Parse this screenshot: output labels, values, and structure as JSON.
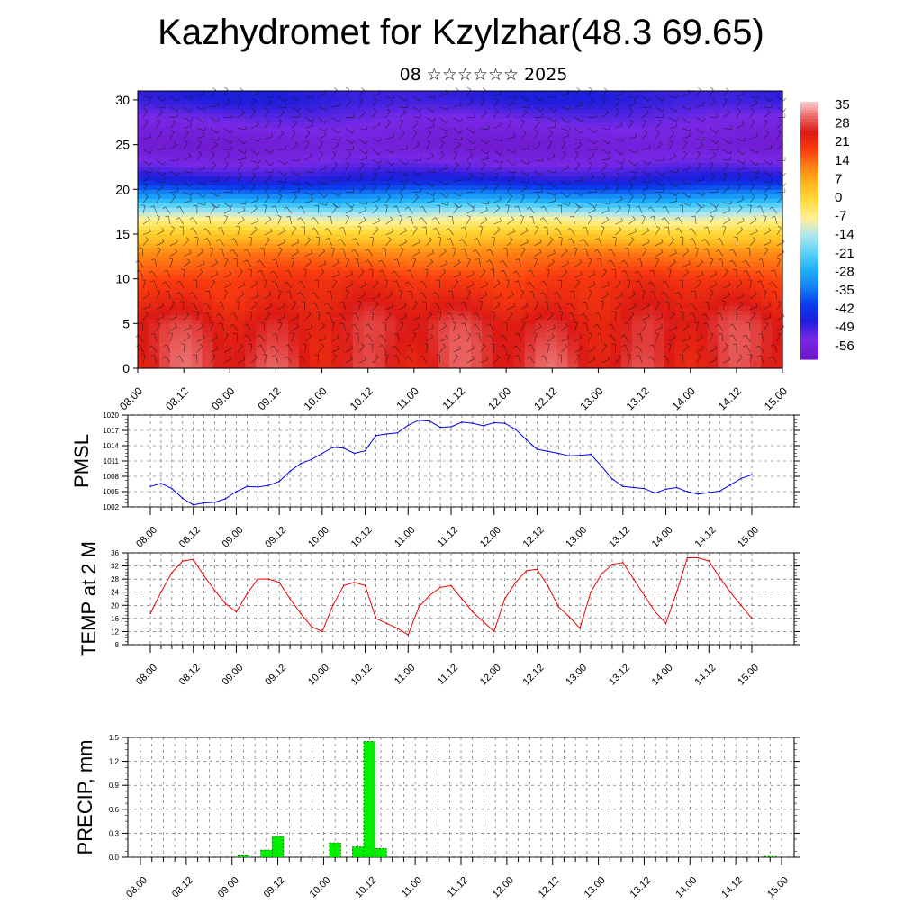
{
  "title": "Kazhydromet for Kzylzhar(48.3 69.65)",
  "subtitle": "08 ☆☆☆☆☆☆ 2025",
  "time_labels": [
    "08.00",
    "08.12",
    "09.00",
    "09.12",
    "10.00",
    "10.12",
    "11.00",
    "11.12",
    "12.00",
    "12.12",
    "13.00",
    "13.12",
    "14.00",
    "14.12",
    "15.00"
  ],
  "chart_data": [
    {
      "type": "heatmap",
      "title": "",
      "xlabel": "",
      "ylabel": "",
      "x": [
        "08.00",
        "08.12",
        "09.00",
        "09.12",
        "10.00",
        "10.12",
        "11.00",
        "11.12",
        "12.00",
        "12.12",
        "13.00",
        "13.12",
        "14.00",
        "14.12",
        "15.00"
      ],
      "ylim": [
        0,
        31
      ],
      "y_ticks": [
        0,
        5,
        10,
        15,
        20,
        25,
        30
      ],
      "colorbar_labels": [
        "35",
        "28",
        "21",
        "14",
        "7",
        "0",
        "-7",
        "-14",
        "-21",
        "-28",
        "-35",
        "-42",
        "-49",
        "-56"
      ],
      "level_temperature_profile": [
        [
          0,
          30
        ],
        [
          5,
          29
        ],
        [
          10,
          22
        ],
        [
          13,
          14
        ],
        [
          15,
          3
        ],
        [
          17,
          -10
        ],
        [
          19,
          -30
        ],
        [
          21,
          -48
        ],
        [
          23,
          -56
        ],
        [
          25,
          -61
        ],
        [
          28,
          -55
        ],
        [
          30,
          -50
        ]
      ],
      "overlay": "wind barbs"
    },
    {
      "type": "line",
      "ylabel": "PMSL",
      "ylim": [
        1002,
        1020
      ],
      "y_ticks": [
        1002,
        1005,
        1008,
        1011,
        1014,
        1017,
        1020
      ],
      "series_color": "#0000ee",
      "x": [
        0,
        3,
        6,
        9,
        12,
        15,
        18,
        21,
        24,
        27,
        30,
        33,
        36,
        39,
        42,
        45,
        48,
        51,
        54,
        57,
        60,
        63,
        66,
        69,
        72,
        75,
        78,
        81,
        84,
        87,
        90,
        93,
        96,
        99,
        102,
        105,
        108,
        111,
        114,
        117,
        120,
        123,
        126,
        129,
        132,
        135,
        138,
        141,
        144,
        147,
        150,
        153,
        156,
        159,
        162,
        165,
        168
      ],
      "values": [
        1006.0,
        1006.6,
        1005.6,
        1003.7,
        1002.4,
        1002.8,
        1002.9,
        1003.6,
        1005.0,
        1006.0,
        1005.9,
        1006.2,
        1007.0,
        1009.0,
        1010.5,
        1011.3,
        1012.5,
        1013.7,
        1013.5,
        1012.5,
        1013.0,
        1016.0,
        1016.3,
        1016.5,
        1018.0,
        1019.0,
        1018.8,
        1017.6,
        1017.7,
        1018.6,
        1018.4,
        1017.9,
        1018.5,
        1018.4,
        1017.2,
        1015.2,
        1013.3,
        1012.9,
        1012.5,
        1012.0,
        1012.1,
        1012.3,
        1010.0,
        1007.5,
        1006.0,
        1005.8,
        1005.6,
        1004.7,
        1005.5,
        1005.8,
        1005.0,
        1004.5,
        1004.8,
        1005.1,
        1006.3,
        1007.6,
        1008.3
      ]
    },
    {
      "type": "line",
      "ylabel": "TEMP at 2 M",
      "ylim": [
        8,
        36
      ],
      "y_ticks": [
        8,
        12,
        16,
        20,
        24,
        28,
        32,
        36
      ],
      "series_color": "#ee0000",
      "x": [
        0,
        3,
        6,
        9,
        12,
        15,
        18,
        21,
        24,
        27,
        30,
        33,
        36,
        39,
        42,
        45,
        48,
        51,
        54,
        57,
        60,
        63,
        66,
        69,
        72,
        75,
        78,
        81,
        84,
        87,
        90,
        93,
        96,
        99,
        102,
        105,
        108,
        111,
        114,
        117,
        120,
        123,
        126,
        129,
        132,
        135,
        138,
        141,
        144,
        147,
        150,
        153,
        156,
        159,
        162,
        165,
        168
      ],
      "values": [
        17.5,
        24.0,
        30.0,
        33.5,
        34.0,
        29.0,
        24.5,
        20.5,
        18.0,
        23.5,
        28.0,
        28.0,
        27.0,
        22.0,
        17.5,
        13.5,
        12.0,
        20.0,
        26.0,
        27.0,
        26.0,
        16.0,
        14.5,
        13.0,
        11.0,
        19.5,
        23.0,
        25.5,
        26.0,
        22.0,
        18.0,
        15.0,
        12.0,
        22.0,
        27.0,
        30.5,
        31.0,
        26.0,
        19.5,
        16.5,
        13.0,
        24.0,
        29.5,
        32.5,
        33.0,
        28.0,
        23.0,
        18.0,
        14.5,
        24.0,
        34.5,
        34.5,
        33.5,
        28.5,
        24.0,
        20.0,
        16.0
      ]
    },
    {
      "type": "bar",
      "ylabel": "PRECIP, mm",
      "ylim": [
        0,
        1.5
      ],
      "y_ticks": [
        "0.0",
        "0.3",
        "0.6",
        "0.9",
        "1.2",
        "1.5"
      ],
      "bar_color": "#00ee00",
      "bars": [
        {
          "hour": 27,
          "value": 0.02
        },
        {
          "hour": 33,
          "value": 0.09
        },
        {
          "hour": 36,
          "value": 0.26
        },
        {
          "hour": 51,
          "value": 0.18
        },
        {
          "hour": 57,
          "value": 0.13
        },
        {
          "hour": 60,
          "value": 1.45
        },
        {
          "hour": 63,
          "value": 0.11
        },
        {
          "hour": 165,
          "value": 0.01
        }
      ]
    }
  ]
}
